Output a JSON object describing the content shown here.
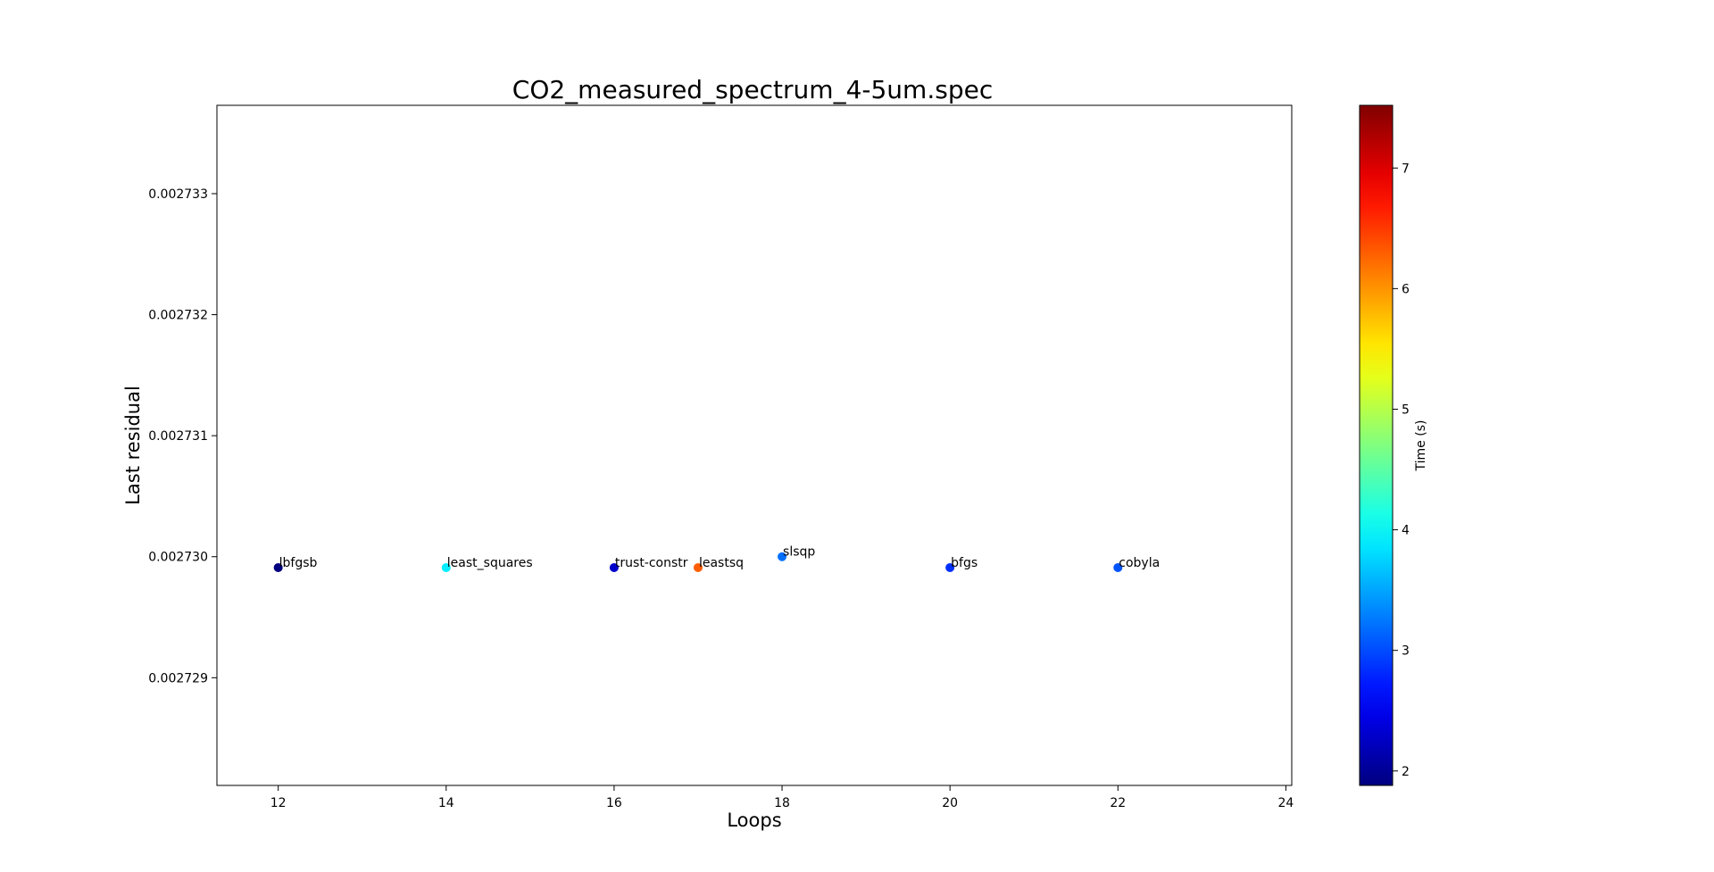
{
  "chart_data": {
    "type": "scatter",
    "title": "CO2_measured_spectrum_4-5um.spec",
    "xlabel": "Loops",
    "ylabel": "Last residual",
    "xlim": [
      11.27,
      24.07
    ],
    "ylim": [
      0.00272801,
      0.00273363
    ],
    "xticks": [
      12,
      14,
      16,
      18,
      20,
      22,
      24
    ],
    "xtick_labels": [
      "12",
      "14",
      "16",
      "18",
      "20",
      "22",
      "24"
    ],
    "yticks": [
      0.0027329,
      0.0027319,
      0.0027309,
      0.0027299,
      0.0027289
    ],
    "ytick_labels": [
      "0.002733",
      "0.002732",
      "0.002731",
      "0.002730",
      "0.002729"
    ],
    "grid": false,
    "colorbar": {
      "label": "Time (s)",
      "colormap": "jet",
      "range": [
        1.88,
        7.52
      ],
      "ticks": [
        2,
        3,
        4,
        5,
        6,
        7
      ],
      "tick_labels": [
        "2",
        "3",
        "4",
        "5",
        "6",
        "7"
      ]
    },
    "points": [
      {
        "label": "lbfgsb",
        "x": 12,
        "y": 0.00272981,
        "time": 1.88
      },
      {
        "label": "least_squares",
        "x": 14,
        "y": 0.00272981,
        "time": 3.9
      },
      {
        "label": "trust-constr",
        "x": 16,
        "y": 0.00272981,
        "time": 2.3
      },
      {
        "label": "leastsq",
        "x": 17,
        "y": 0.00272981,
        "time": 6.3
      },
      {
        "label": "slsqp",
        "x": 18,
        "y": 0.0027299,
        "time": 3.2
      },
      {
        "label": "bfgs",
        "x": 20,
        "y": 0.00272981,
        "time": 2.85
      },
      {
        "label": "cobyla",
        "x": 22,
        "y": 0.00272981,
        "time": 3.05
      }
    ]
  }
}
